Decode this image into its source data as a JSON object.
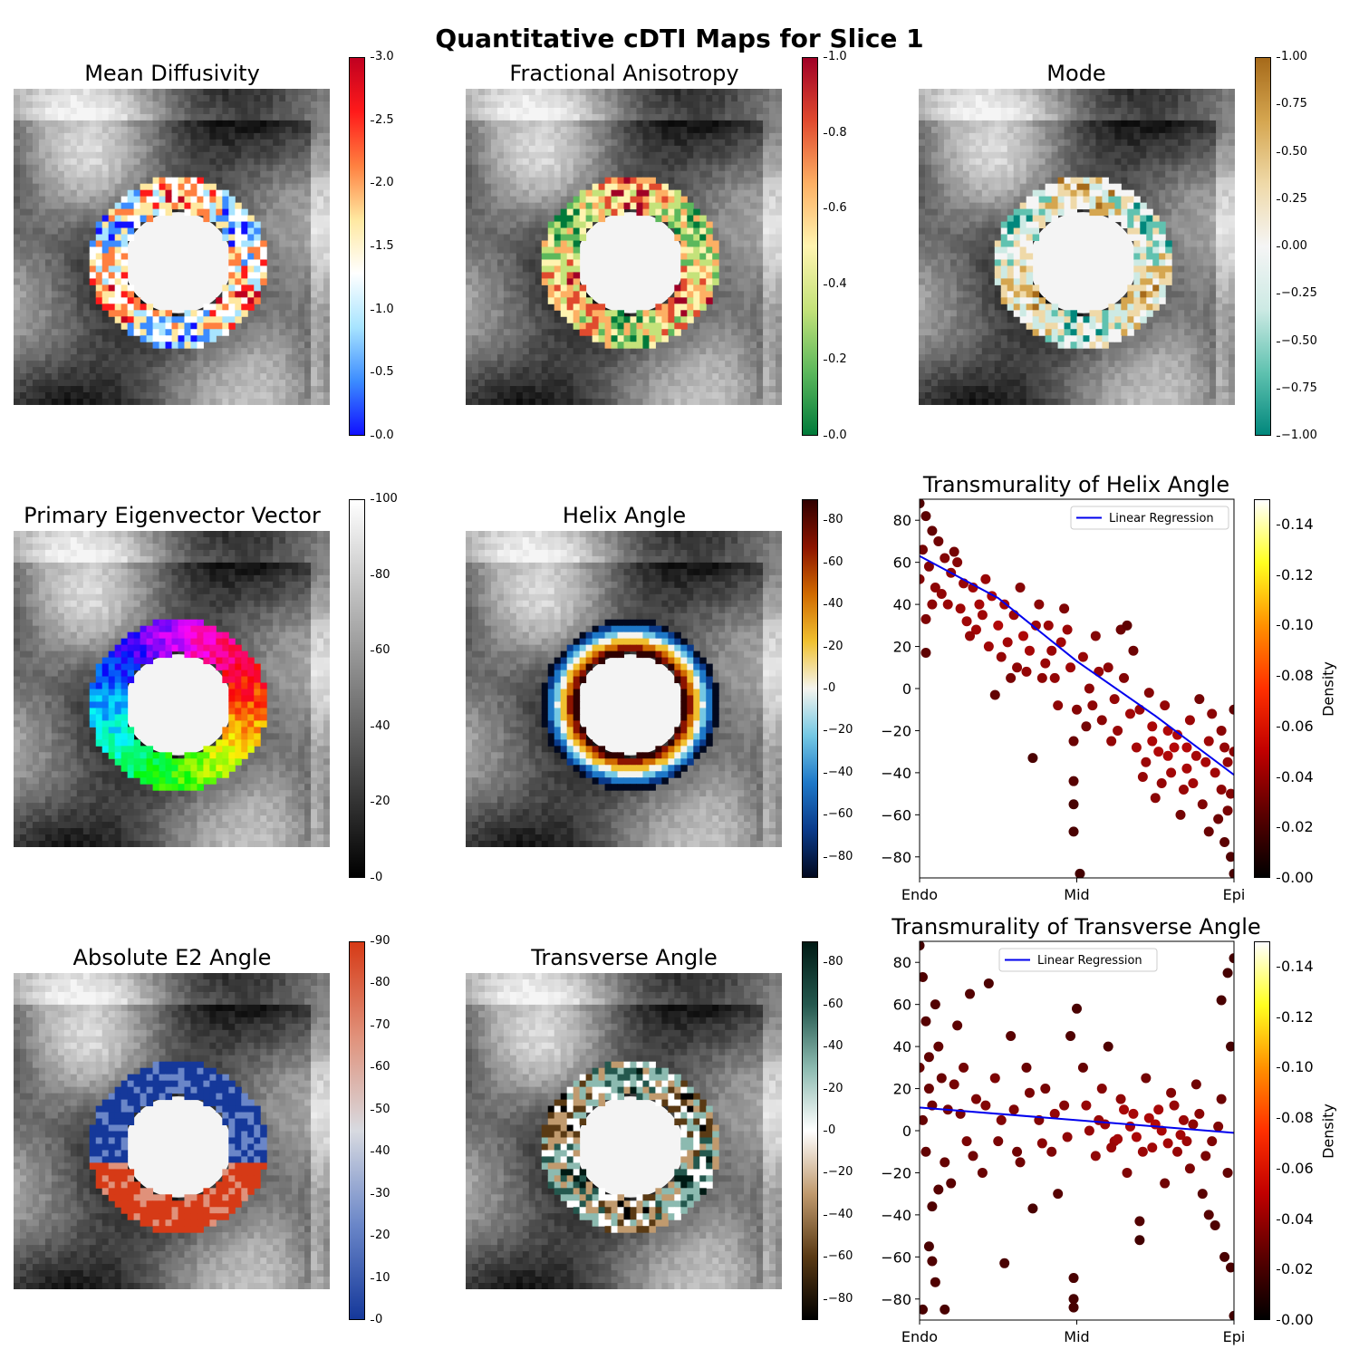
{
  "figure": {
    "title": "Quantitative cDTI Maps for Slice 1"
  },
  "panels": [
    {
      "title": "Mean Diffusivity",
      "colorbar": {
        "ticks": [
          "0.0",
          "0.5",
          "1.0",
          "1.5",
          "2.0",
          "2.5",
          "3.0"
        ],
        "range": [
          0,
          3
        ],
        "colors": [
          "#1010ff",
          "#3c8cff",
          "#a8e4ff",
          "#ffffff",
          "#ffe8a0",
          "#ff8040",
          "#ff1a1a",
          "#c00020"
        ]
      }
    },
    {
      "title": "Fractional Anisotropy",
      "colorbar": {
        "ticks": [
          "0.0",
          "0.2",
          "0.4",
          "0.6",
          "0.8",
          "1.0"
        ],
        "range": [
          0,
          1
        ],
        "colors": [
          "#007a3a",
          "#5cb85c",
          "#c4e27a",
          "#fff4b0",
          "#fdb064",
          "#e04a2e",
          "#a00026"
        ]
      }
    },
    {
      "title": "Mode",
      "colorbar": {
        "ticks": [
          "−1.00",
          "−0.75",
          "−0.50",
          "−0.25",
          "0.00",
          "0.25",
          "0.50",
          "0.75",
          "1.00"
        ],
        "range": [
          -1,
          1
        ],
        "colors": [
          "#01877c",
          "#60c2b0",
          "#cdeae4",
          "#f5f5f5",
          "#efd9a8",
          "#d5a650",
          "#a66a1a"
        ]
      }
    },
    {
      "title": "Primary Eigenvector Vector",
      "colorbar": {
        "ticks": [
          "0",
          "20",
          "40",
          "60",
          "80",
          "100"
        ],
        "range": [
          0,
          100
        ],
        "colors": [
          "#000000",
          "#ffffff"
        ]
      }
    },
    {
      "title": "Helix Angle",
      "colorbar": {
        "ticks": [
          "−80",
          "−60",
          "−40",
          "−20",
          "0",
          "20",
          "40",
          "60",
          "80"
        ],
        "range": [
          -90,
          90
        ],
        "colors": [
          "#02091f",
          "#0a3a8a",
          "#1e78c8",
          "#74c8e4",
          "#f4f4ee",
          "#f0c030",
          "#d06a00",
          "#8c1400",
          "#300000"
        ]
      }
    },
    {
      "title": "Absolute E2 Angle",
      "colorbar": {
        "ticks": [
          "0",
          "10",
          "20",
          "30",
          "40",
          "50",
          "60",
          "70",
          "80",
          "90"
        ],
        "range": [
          0,
          90
        ],
        "colors": [
          "#15389a",
          "#6a86c8",
          "#d8dae0",
          "#e0917a",
          "#d63a16"
        ]
      }
    },
    {
      "title": "Transverse Angle",
      "colorbar": {
        "ticks": [
          "−80",
          "−60",
          "−40",
          "−20",
          "0",
          "20",
          "40",
          "60",
          "80"
        ],
        "range": [
          -90,
          90
        ],
        "colors": [
          "#000000",
          "#5a3a14",
          "#c09a6e",
          "#ffffff",
          "#8cbab0",
          "#24584e",
          "#001a14"
        ]
      }
    }
  ],
  "scatter_common": {
    "xticks": [
      "Endo",
      "Mid",
      "Epi"
    ],
    "yticks": [
      "−80",
      "−60",
      "−40",
      "−20",
      "0",
      "20",
      "40",
      "60",
      "80"
    ],
    "ylim": [
      -90,
      90
    ],
    "legend_label": "Linear Regression",
    "density_label": "Density",
    "density_ticks": [
      "0.00",
      "0.02",
      "0.04",
      "0.06",
      "0.08",
      "0.10",
      "0.12",
      "0.14"
    ],
    "density_range": [
      0,
      0.15
    ],
    "density_colors": [
      "#000000",
      "#5a0000",
      "#c00000",
      "#ff3000",
      "#ff9000",
      "#ffff20",
      "#ffffff"
    ]
  },
  "chart_data": [
    {
      "type": "scatter",
      "title": "Transmurality of Helix Angle",
      "xlabel": "",
      "ylabel": "",
      "xlim": [
        0,
        1
      ],
      "ylim": [
        -90,
        90
      ],
      "legend": "top-right",
      "regression": [
        {
          "x": 0,
          "y": 63
        },
        {
          "x": 0.25,
          "y": 43
        },
        {
          "x": 0.5,
          "y": 13
        },
        {
          "x": 0.75,
          "y": -13
        },
        {
          "x": 1,
          "y": -41
        }
      ],
      "points": [
        {
          "x": 0.0,
          "y": 88
        },
        {
          "x": 0.02,
          "y": 82
        },
        {
          "x": 0.04,
          "y": 75
        },
        {
          "x": 0.01,
          "y": 66
        },
        {
          "x": 0.03,
          "y": 58
        },
        {
          "x": 0.0,
          "y": 52
        },
        {
          "x": 0.05,
          "y": 48
        },
        {
          "x": 0.02,
          "y": 33
        },
        {
          "x": 0.02,
          "y": 17
        },
        {
          "x": 0.06,
          "y": 70
        },
        {
          "x": 0.08,
          "y": 62
        },
        {
          "x": 0.1,
          "y": 55
        },
        {
          "x": 0.07,
          "y": 45
        },
        {
          "x": 0.09,
          "y": 40
        },
        {
          "x": 0.12,
          "y": 60
        },
        {
          "x": 0.14,
          "y": 50
        },
        {
          "x": 0.15,
          "y": 32
        },
        {
          "x": 0.13,
          "y": 38
        },
        {
          "x": 0.17,
          "y": 48
        },
        {
          "x": 0.19,
          "y": 40
        },
        {
          "x": 0.18,
          "y": 28
        },
        {
          "x": 0.2,
          "y": 35
        },
        {
          "x": 0.22,
          "y": 20
        },
        {
          "x": 0.23,
          "y": 44
        },
        {
          "x": 0.25,
          "y": 30
        },
        {
          "x": 0.26,
          "y": 15
        },
        {
          "x": 0.24,
          "y": -3
        },
        {
          "x": 0.28,
          "y": 22
        },
        {
          "x": 0.3,
          "y": 35
        },
        {
          "x": 0.31,
          "y": 10
        },
        {
          "x": 0.33,
          "y": 25
        },
        {
          "x": 0.35,
          "y": 18
        },
        {
          "x": 0.36,
          "y": -33
        },
        {
          "x": 0.38,
          "y": 40
        },
        {
          "x": 0.4,
          "y": 12
        },
        {
          "x": 0.41,
          "y": 30
        },
        {
          "x": 0.43,
          "y": 5
        },
        {
          "x": 0.45,
          "y": 22
        },
        {
          "x": 0.46,
          "y": 38
        },
        {
          "x": 0.48,
          "y": 10
        },
        {
          "x": 0.5,
          "y": -10
        },
        {
          "x": 0.49,
          "y": -25
        },
        {
          "x": 0.49,
          "y": -44
        },
        {
          "x": 0.49,
          "y": -55
        },
        {
          "x": 0.49,
          "y": -68
        },
        {
          "x": 0.51,
          "y": -88
        },
        {
          "x": 0.52,
          "y": 15
        },
        {
          "x": 0.54,
          "y": 0
        },
        {
          "x": 0.55,
          "y": -8
        },
        {
          "x": 0.56,
          "y": 25
        },
        {
          "x": 0.58,
          "y": -15
        },
        {
          "x": 0.6,
          "y": 10
        },
        {
          "x": 0.62,
          "y": -5
        },
        {
          "x": 0.63,
          "y": -20
        },
        {
          "x": 0.65,
          "y": 5
        },
        {
          "x": 0.67,
          "y": -12
        },
        {
          "x": 0.69,
          "y": -28
        },
        {
          "x": 0.7,
          "y": -10
        },
        {
          "x": 0.72,
          "y": -35
        },
        {
          "x": 0.74,
          "y": -18
        },
        {
          "x": 0.76,
          "y": -30
        },
        {
          "x": 0.78,
          "y": -8
        },
        {
          "x": 0.8,
          "y": -40
        },
        {
          "x": 0.82,
          "y": -22
        },
        {
          "x": 0.84,
          "y": -48
        },
        {
          "x": 0.86,
          "y": -15
        },
        {
          "x": 0.88,
          "y": -32
        },
        {
          "x": 0.9,
          "y": -55
        },
        {
          "x": 0.92,
          "y": -25
        },
        {
          "x": 0.94,
          "y": -40
        },
        {
          "x": 0.95,
          "y": -62
        },
        {
          "x": 0.96,
          "y": -20
        },
        {
          "x": 0.97,
          "y": -73
        },
        {
          "x": 0.98,
          "y": -35
        },
        {
          "x": 0.99,
          "y": -80
        },
        {
          "x": 1.0,
          "y": -88
        },
        {
          "x": 1.0,
          "y": -10
        },
        {
          "x": 0.99,
          "y": -50
        },
        {
          "x": 0.97,
          "y": -28
        },
        {
          "x": 0.93,
          "y": -12
        },
        {
          "x": 0.89,
          "y": -5
        },
        {
          "x": 0.85,
          "y": -38
        },
        {
          "x": 0.81,
          "y": -28
        },
        {
          "x": 0.77,
          "y": -45
        },
        {
          "x": 0.73,
          "y": -2
        },
        {
          "x": 0.68,
          "y": 18
        },
        {
          "x": 0.64,
          "y": 28
        },
        {
          "x": 0.61,
          "y": -25
        },
        {
          "x": 0.57,
          "y": 8
        },
        {
          "x": 0.53,
          "y": -18
        },
        {
          "x": 0.47,
          "y": 28
        },
        {
          "x": 0.44,
          "y": -8
        },
        {
          "x": 0.42,
          "y": 18
        },
        {
          "x": 0.39,
          "y": 5
        },
        {
          "x": 0.37,
          "y": 30
        },
        {
          "x": 0.34,
          "y": 8
        },
        {
          "x": 0.32,
          "y": 48
        },
        {
          "x": 0.29,
          "y": 5
        },
        {
          "x": 0.27,
          "y": 40
        },
        {
          "x": 0.21,
          "y": 52
        },
        {
          "x": 0.16,
          "y": 25
        },
        {
          "x": 0.11,
          "y": 65
        },
        {
          "x": 0.04,
          "y": 40
        },
        {
          "x": 0.66,
          "y": 30
        },
        {
          "x": 0.71,
          "y": -42
        },
        {
          "x": 0.75,
          "y": -52
        },
        {
          "x": 0.79,
          "y": -20
        },
        {
          "x": 0.83,
          "y": -60
        },
        {
          "x": 0.87,
          "y": -45
        },
        {
          "x": 0.91,
          "y": -35
        },
        {
          "x": 0.98,
          "y": -58
        },
        {
          "x": 1.0,
          "y": -30
        },
        {
          "x": 0.96,
          "y": -48
        },
        {
          "x": 0.92,
          "y": -68
        },
        {
          "x": 0.85,
          "y": -28
        },
        {
          "x": 0.79,
          "y": -32
        },
        {
          "x": 0.74,
          "y": -25
        }
      ]
    },
    {
      "type": "scatter",
      "title": "Transmurality of Transverse Angle",
      "xlabel": "",
      "ylabel": "",
      "xlim": [
        0,
        1
      ],
      "ylim": [
        -90,
        90
      ],
      "legend": "top-center",
      "regression": [
        {
          "x": 0,
          "y": 11
        },
        {
          "x": 0.5,
          "y": 5
        },
        {
          "x": 1,
          "y": -1
        }
      ],
      "points": [
        {
          "x": 0.0,
          "y": 88
        },
        {
          "x": 0.01,
          "y": 73
        },
        {
          "x": 0.02,
          "y": 52
        },
        {
          "x": 0.0,
          "y": 30
        },
        {
          "x": 0.03,
          "y": 20
        },
        {
          "x": 0.01,
          "y": 5
        },
        {
          "x": 0.02,
          "y": -10
        },
        {
          "x": 0.04,
          "y": -36
        },
        {
          "x": 0.03,
          "y": -55
        },
        {
          "x": 0.04,
          "y": -62
        },
        {
          "x": 0.05,
          "y": -72
        },
        {
          "x": 0.01,
          "y": -85
        },
        {
          "x": 0.08,
          "y": -85
        },
        {
          "x": 0.06,
          "y": 40
        },
        {
          "x": 0.05,
          "y": 60
        },
        {
          "x": 0.07,
          "y": 25
        },
        {
          "x": 0.09,
          "y": 10
        },
        {
          "x": 0.1,
          "y": -25
        },
        {
          "x": 0.12,
          "y": 50
        },
        {
          "x": 0.14,
          "y": 30
        },
        {
          "x": 0.15,
          "y": -5
        },
        {
          "x": 0.16,
          "y": 65
        },
        {
          "x": 0.18,
          "y": 15
        },
        {
          "x": 0.2,
          "y": -20
        },
        {
          "x": 0.22,
          "y": 70
        },
        {
          "x": 0.24,
          "y": 25
        },
        {
          "x": 0.25,
          "y": -5
        },
        {
          "x": 0.27,
          "y": -63
        },
        {
          "x": 0.29,
          "y": 45
        },
        {
          "x": 0.3,
          "y": 10
        },
        {
          "x": 0.32,
          "y": -15
        },
        {
          "x": 0.34,
          "y": 30
        },
        {
          "x": 0.36,
          "y": -37
        },
        {
          "x": 0.38,
          "y": 5
        },
        {
          "x": 0.4,
          "y": 20
        },
        {
          "x": 0.42,
          "y": -10
        },
        {
          "x": 0.44,
          "y": -30
        },
        {
          "x": 0.46,
          "y": 12
        },
        {
          "x": 0.48,
          "y": 45
        },
        {
          "x": 0.49,
          "y": -70
        },
        {
          "x": 0.49,
          "y": -80
        },
        {
          "x": 0.49,
          "y": -84
        },
        {
          "x": 0.5,
          "y": 58
        },
        {
          "x": 0.52,
          "y": 30
        },
        {
          "x": 0.54,
          "y": 0
        },
        {
          "x": 0.56,
          "y": -12
        },
        {
          "x": 0.58,
          "y": 20
        },
        {
          "x": 0.6,
          "y": 40
        },
        {
          "x": 0.62,
          "y": -5
        },
        {
          "x": 0.64,
          "y": 15
        },
        {
          "x": 0.66,
          "y": -20
        },
        {
          "x": 0.68,
          "y": 8
        },
        {
          "x": 0.7,
          "y": -43
        },
        {
          "x": 0.7,
          "y": -52
        },
        {
          "x": 0.72,
          "y": 25
        },
        {
          "x": 0.74,
          "y": -8
        },
        {
          "x": 0.76,
          "y": 10
        },
        {
          "x": 0.78,
          "y": -25
        },
        {
          "x": 0.8,
          "y": 18
        },
        {
          "x": 0.82,
          "y": -10
        },
        {
          "x": 0.84,
          "y": 5
        },
        {
          "x": 0.86,
          "y": -18
        },
        {
          "x": 0.88,
          "y": 22
        },
        {
          "x": 0.9,
          "y": -30
        },
        {
          "x": 0.92,
          "y": -40
        },
        {
          "x": 0.94,
          "y": -45
        },
        {
          "x": 0.96,
          "y": 62
        },
        {
          "x": 0.97,
          "y": -60
        },
        {
          "x": 0.98,
          "y": 75
        },
        {
          "x": 0.99,
          "y": -65
        },
        {
          "x": 1.0,
          "y": 82
        },
        {
          "x": 1.0,
          "y": -88
        },
        {
          "x": 0.99,
          "y": 40
        },
        {
          "x": 0.98,
          "y": -20
        },
        {
          "x": 0.96,
          "y": 15
        },
        {
          "x": 0.93,
          "y": -5
        },
        {
          "x": 0.89,
          "y": 8
        },
        {
          "x": 0.85,
          "y": -5
        },
        {
          "x": 0.81,
          "y": 12
        },
        {
          "x": 0.77,
          "y": 0
        },
        {
          "x": 0.73,
          "y": 6
        },
        {
          "x": 0.69,
          "y": -3
        },
        {
          "x": 0.65,
          "y": 10
        },
        {
          "x": 0.61,
          "y": -8
        },
        {
          "x": 0.57,
          "y": 5
        },
        {
          "x": 0.53,
          "y": 12
        },
        {
          "x": 0.47,
          "y": -3
        },
        {
          "x": 0.43,
          "y": 8
        },
        {
          "x": 0.39,
          "y": -6
        },
        {
          "x": 0.35,
          "y": 18
        },
        {
          "x": 0.31,
          "y": -10
        },
        {
          "x": 0.26,
          "y": 5
        },
        {
          "x": 0.21,
          "y": 12
        },
        {
          "x": 0.17,
          "y": -12
        },
        {
          "x": 0.13,
          "y": 8
        },
        {
          "x": 0.11,
          "y": 22
        },
        {
          "x": 0.08,
          "y": -15
        },
        {
          "x": 0.06,
          "y": -28
        },
        {
          "x": 0.04,
          "y": 12
        },
        {
          "x": 0.03,
          "y": 35
        },
        {
          "x": 0.95,
          "y": 2
        },
        {
          "x": 0.91,
          "y": -12
        },
        {
          "x": 0.87,
          "y": 3
        },
        {
          "x": 0.83,
          "y": -2
        },
        {
          "x": 0.79,
          "y": -6
        },
        {
          "x": 0.75,
          "y": 3
        },
        {
          "x": 0.71,
          "y": -10
        },
        {
          "x": 0.67,
          "y": 2
        },
        {
          "x": 0.63,
          "y": -4
        },
        {
          "x": 0.59,
          "y": 3
        }
      ]
    }
  ]
}
